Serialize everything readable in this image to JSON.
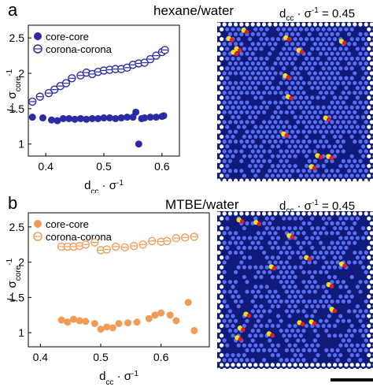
{
  "panels": [
    {
      "letter": "a",
      "title": "hexane/water",
      "dcc_readout_prefix": "d",
      "dcc_readout_sub": "cc",
      "dcc_readout_rest": " · σ",
      "dcc_readout_sup": "-1",
      "dcc_readout_value": " = 0.45"
    },
    {
      "letter": "b",
      "title": "MTBE/water",
      "dcc_readout_prefix": "d",
      "dcc_readout_sub": "cc",
      "dcc_readout_rest": " · σ",
      "dcc_readout_sup": "-1",
      "dcc_readout_value": " = 0.45"
    }
  ],
  "colors": {
    "panel_a_series": "#2b2ba6",
    "panel_b_series": "#f39a55",
    "simulation_background": "#0f1a7a",
    "core_particles": "#5a6cf0",
    "corona_outer": "#ffffff",
    "defect_red": "#e02020",
    "defect_yellow": "#f0e020"
  },
  "chart_data": [
    {
      "type": "scatter",
      "panel": "a",
      "xlabel": "d_cc · σ^-1",
      "ylabel": "l · σ_core^-1",
      "xlim": [
        0.37,
        0.63
      ],
      "ylim": [
        0.83,
        2.68
      ],
      "xticks": [
        "0.4",
        "0.5",
        "0.6"
      ],
      "yticks": [
        "1",
        "1.5",
        "2",
        "2.5"
      ],
      "legend": "top-left",
      "series": [
        {
          "name": "core-core",
          "marker": "filled",
          "x": [
            0.377,
            0.395,
            0.41,
            0.42,
            0.43,
            0.44,
            0.45,
            0.46,
            0.47,
            0.48,
            0.49,
            0.5,
            0.51,
            0.52,
            0.53,
            0.54,
            0.55,
            0.555,
            0.56,
            0.565,
            0.57,
            0.58,
            0.59,
            0.6,
            0.603
          ],
          "y": [
            1.38,
            1.37,
            1.34,
            1.33,
            1.36,
            1.36,
            1.35,
            1.36,
            1.35,
            1.36,
            1.36,
            1.37,
            1.37,
            1.36,
            1.37,
            1.38,
            1.38,
            1.45,
            1.0,
            1.36,
            1.37,
            1.38,
            1.38,
            1.39,
            1.4
          ]
        },
        {
          "name": "corona-corona",
          "marker": "open",
          "x": [
            0.377,
            0.39,
            0.405,
            0.415,
            0.425,
            0.435,
            0.445,
            0.46,
            0.47,
            0.48,
            0.49,
            0.5,
            0.51,
            0.52,
            0.53,
            0.54,
            0.55,
            0.56,
            0.57,
            0.58,
            0.59,
            0.6,
            0.605
          ],
          "y": [
            1.6,
            1.67,
            1.72,
            1.77,
            1.82,
            1.86,
            1.93,
            1.97,
            2.01,
            1.99,
            2.02,
            2.04,
            2.05,
            2.06,
            2.06,
            2.08,
            2.12,
            2.14,
            2.15,
            2.2,
            2.25,
            2.3,
            2.33
          ]
        }
      ]
    },
    {
      "type": "scatter",
      "panel": "b",
      "xlabel": "d_cc · σ^-1",
      "ylabel": "l · σ_core^-1",
      "xlim": [
        0.38,
        0.68
      ],
      "ylim": [
        0.8,
        2.7
      ],
      "xticks": [
        "0.4",
        "0.5",
        "0.6"
      ],
      "yticks": [
        "1",
        "1.5",
        "2",
        "2.5"
      ],
      "legend": "top-left",
      "series": [
        {
          "name": "core-core",
          "marker": "filled",
          "x": [
            0.435,
            0.445,
            0.455,
            0.465,
            0.475,
            0.49,
            0.5,
            0.51,
            0.52,
            0.53,
            0.545,
            0.56,
            0.58,
            0.59,
            0.6,
            0.615,
            0.625,
            0.645,
            0.655
          ],
          "y": [
            1.18,
            1.15,
            1.19,
            1.17,
            1.16,
            1.13,
            1.05,
            1.08,
            1.07,
            1.13,
            1.14,
            1.15,
            1.2,
            1.25,
            1.28,
            1.25,
            1.17,
            1.43,
            1.03
          ]
        },
        {
          "name": "corona-corona",
          "marker": "open",
          "x": [
            0.435,
            0.445,
            0.455,
            0.465,
            0.475,
            0.49,
            0.5,
            0.51,
            0.525,
            0.54,
            0.555,
            0.57,
            0.585,
            0.6,
            0.61,
            0.625,
            0.64,
            0.655
          ],
          "y": [
            2.22,
            2.22,
            2.22,
            2.23,
            2.25,
            2.28,
            2.17,
            2.18,
            2.22,
            2.21,
            2.23,
            2.25,
            2.3,
            2.29,
            2.3,
            2.34,
            2.35,
            2.36
          ]
        }
      ]
    }
  ]
}
